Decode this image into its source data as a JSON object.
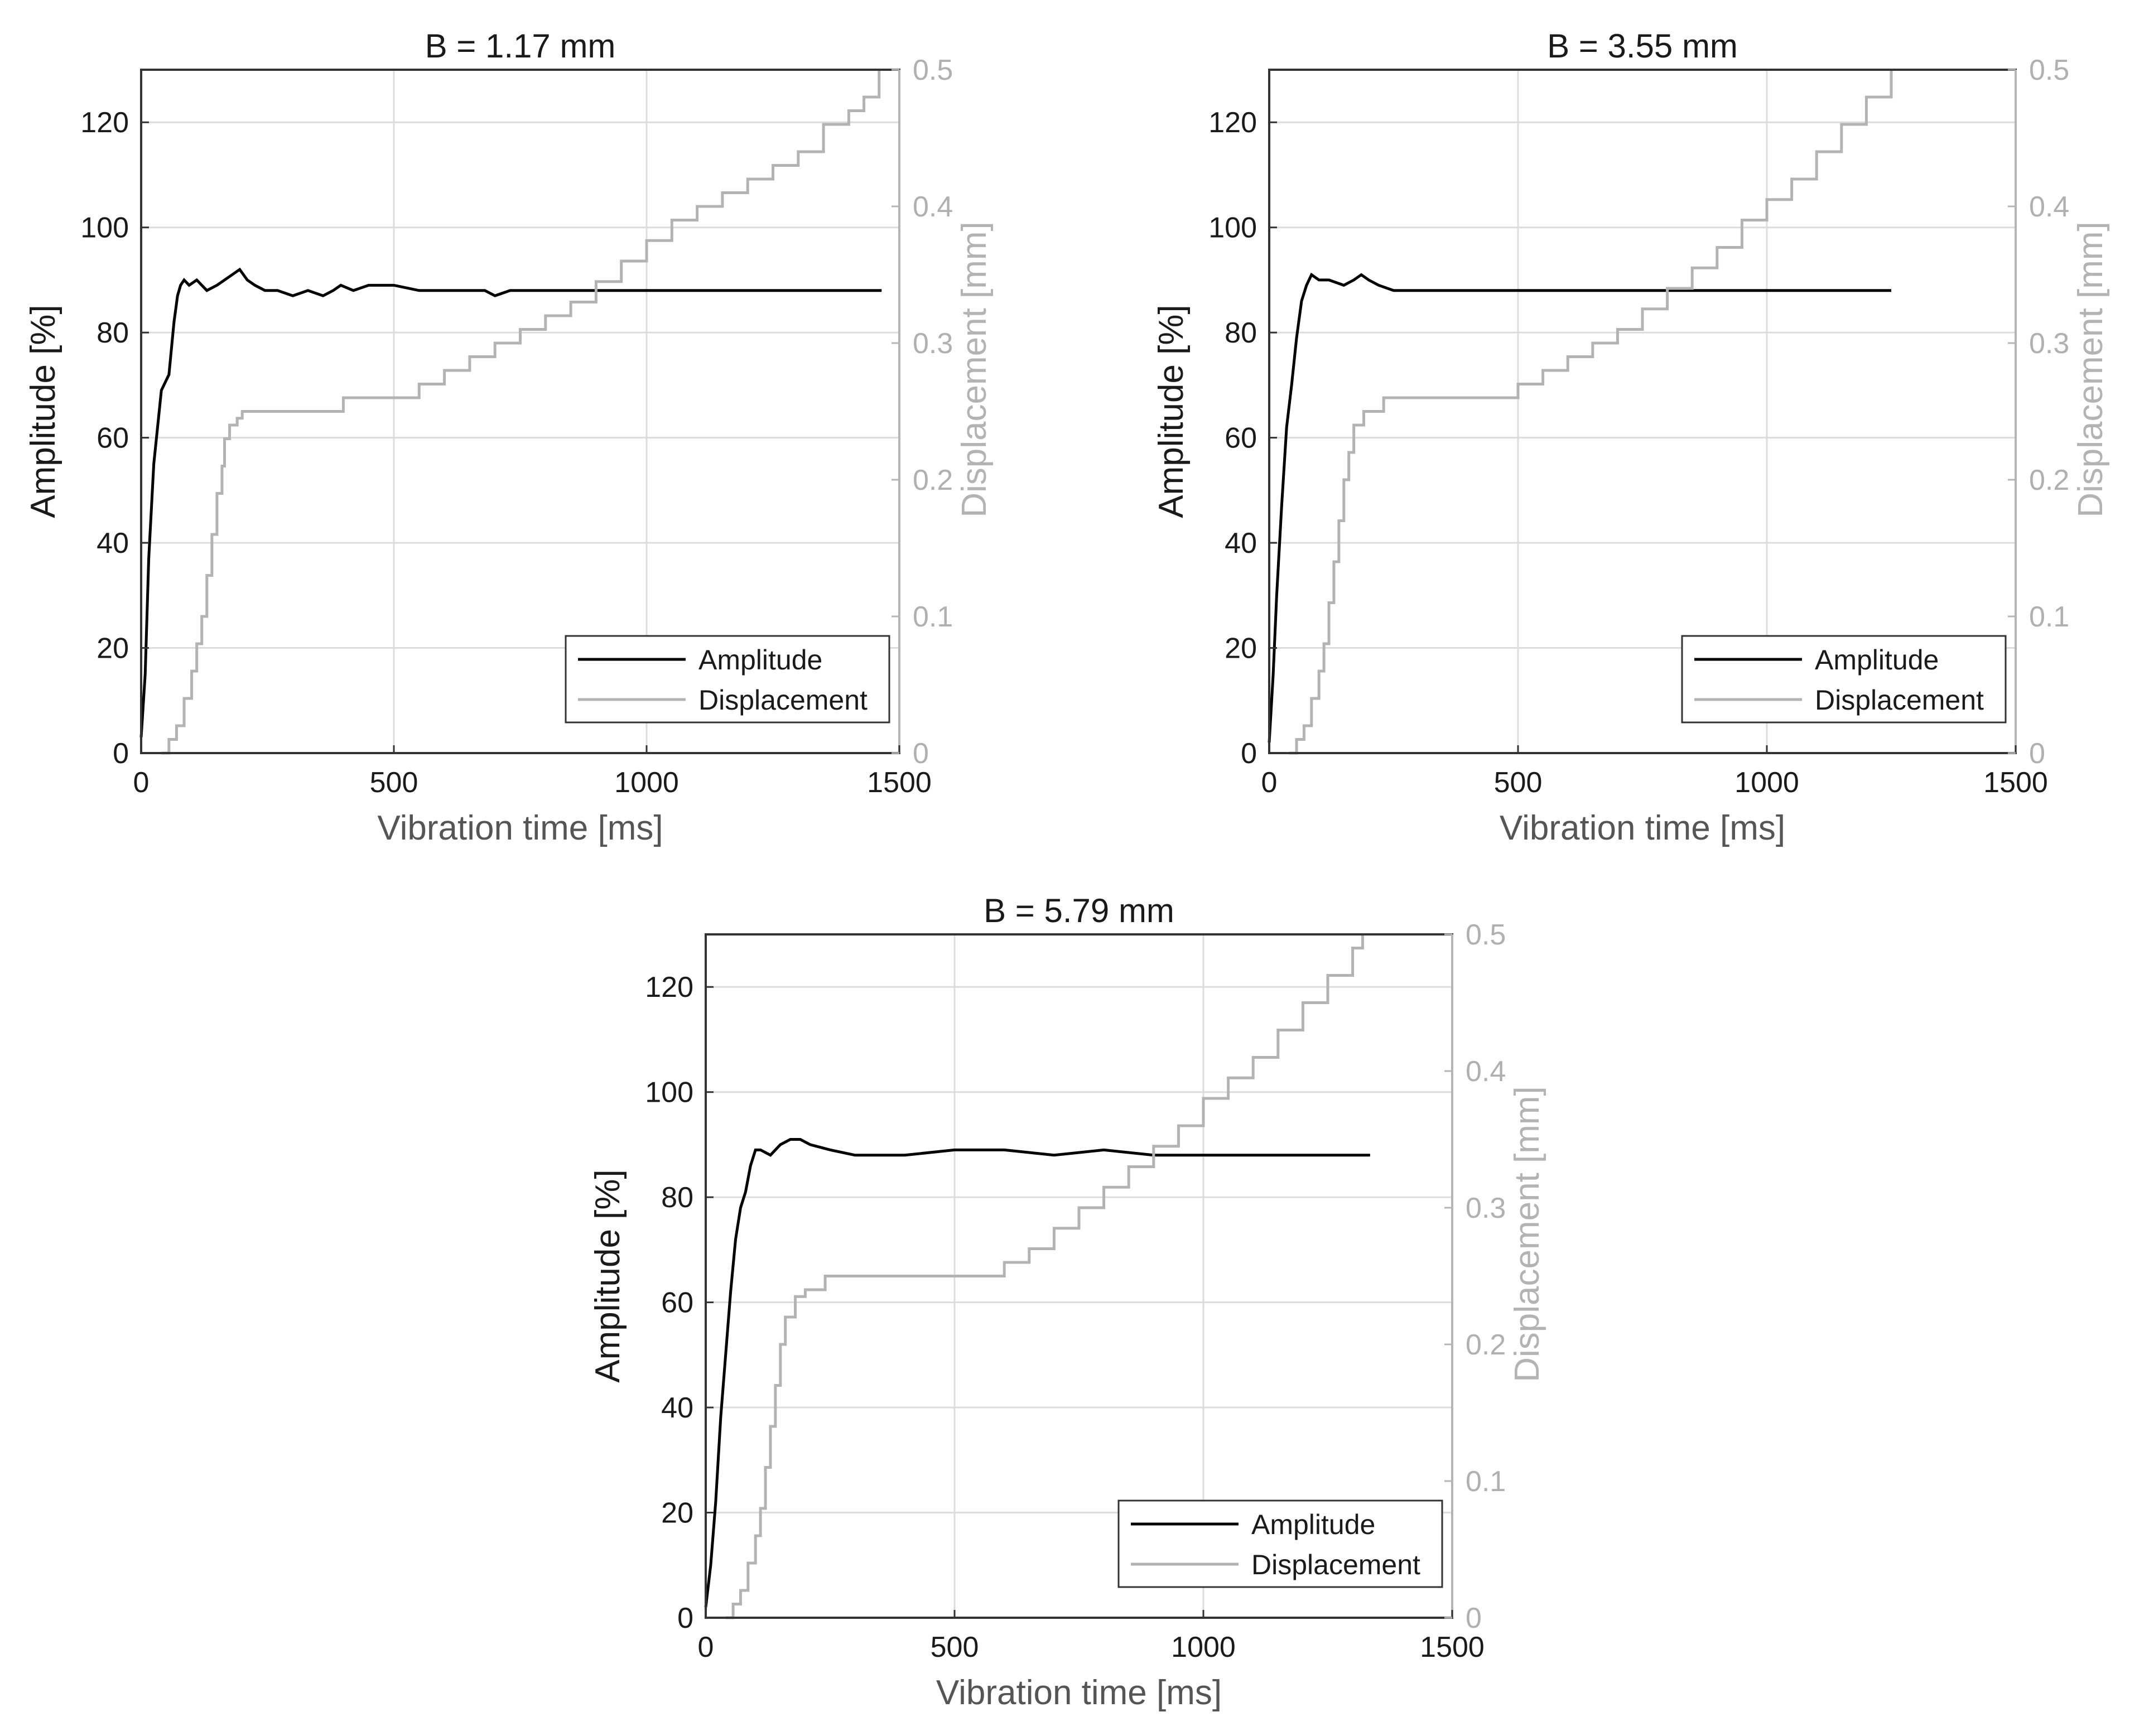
{
  "chart_data": [
    {
      "type": "line",
      "title": "B = 1.17 mm",
      "xlabel": "Vibration time [ms]",
      "ylabel": "Amplitude [%]",
      "y2label": "Displacement [mm]",
      "xlim": [
        0,
        1500
      ],
      "ylim": [
        0,
        130
      ],
      "y2lim": [
        0,
        0.5
      ],
      "xticks": [
        0,
        500,
        1000,
        1500
      ],
      "yticks": [
        0,
        20,
        40,
        60,
        80,
        100,
        120
      ],
      "y2ticks": [
        0,
        0.1,
        0.2,
        0.3,
        0.4,
        0.5
      ],
      "grid": true,
      "legend": {
        "position": "bottom-right",
        "entries": [
          "Amplitude",
          "Displacement"
        ]
      },
      "series": [
        {
          "name": "Amplitude",
          "color": "#000000",
          "axis": "left",
          "x": [
            0,
            8,
            15,
            25,
            40,
            55,
            65,
            72,
            78,
            85,
            95,
            110,
            130,
            150,
            165,
            180,
            195,
            210,
            225,
            245,
            270,
            300,
            330,
            360,
            380,
            395,
            420,
            450,
            500,
            550,
            600,
            640,
            680,
            700,
            730,
            780,
            850,
            900,
            950,
            1000,
            1100,
            1200,
            1300,
            1400,
            1465
          ],
          "y": [
            3,
            15,
            37,
            55,
            69,
            72,
            82,
            87,
            89,
            90,
            89,
            90,
            88,
            89,
            90,
            91,
            92,
            90,
            89,
            88,
            88,
            87,
            88,
            87,
            88,
            89,
            88,
            89,
            89,
            88,
            88,
            88,
            88,
            87,
            88,
            88,
            88,
            88,
            88,
            88,
            88,
            88,
            88,
            88,
            88
          ]
        },
        {
          "name": "Displacement",
          "color": "#b3b3b3",
          "axis": "right",
          "x": [
            40,
            55,
            70,
            85,
            100,
            110,
            120,
            130,
            140,
            150,
            160,
            165,
            175,
            190,
            200,
            400,
            500,
            550,
            600,
            650,
            700,
            750,
            800,
            850,
            900,
            950,
            1000,
            1050,
            1100,
            1150,
            1200,
            1250,
            1300,
            1350,
            1400,
            1430,
            1460
          ],
          "y": [
            0,
            0.01,
            0.02,
            0.04,
            0.06,
            0.08,
            0.1,
            0.13,
            0.16,
            0.19,
            0.21,
            0.23,
            0.24,
            0.245,
            0.25,
            0.26,
            0.26,
            0.27,
            0.28,
            0.29,
            0.3,
            0.31,
            0.32,
            0.33,
            0.345,
            0.36,
            0.375,
            0.39,
            0.4,
            0.41,
            0.42,
            0.43,
            0.44,
            0.46,
            0.47,
            0.48,
            0.5
          ]
        }
      ]
    },
    {
      "type": "line",
      "title": "B = 3.55 mm",
      "xlabel": "Vibration time [ms]",
      "ylabel": "Amplitude [%]",
      "y2label": "Displacement [mm]",
      "xlim": [
        0,
        1500
      ],
      "ylim": [
        0,
        130
      ],
      "y2lim": [
        0,
        0.5
      ],
      "xticks": [
        0,
        500,
        1000,
        1500
      ],
      "yticks": [
        0,
        20,
        40,
        60,
        80,
        100,
        120
      ],
      "y2ticks": [
        0,
        0.1,
        0.2,
        0.3,
        0.4,
        0.5
      ],
      "grid": true,
      "legend": {
        "position": "bottom-right",
        "entries": [
          "Amplitude",
          "Displacement"
        ]
      },
      "series": [
        {
          "name": "Amplitude",
          "color": "#000000",
          "axis": "left",
          "x": [
            0,
            8,
            15,
            25,
            35,
            45,
            55,
            65,
            75,
            85,
            100,
            120,
            150,
            170,
            185,
            200,
            220,
            250,
            300,
            400,
            500,
            600,
            700,
            800,
            900,
            920,
            1000,
            1100,
            1200,
            1250
          ],
          "y": [
            2,
            15,
            30,
            47,
            62,
            70,
            79,
            86,
            89,
            91,
            90,
            90,
            89,
            90,
            91,
            90,
            89,
            88,
            88,
            88,
            88,
            88,
            88,
            88,
            88,
            88,
            88,
            88,
            88,
            88
          ]
        },
        {
          "name": "Displacement",
          "color": "#b3b3b3",
          "axis": "right",
          "x": [
            40,
            55,
            70,
            85,
            100,
            110,
            120,
            130,
            140,
            150,
            160,
            170,
            190,
            200,
            230,
            480,
            500,
            550,
            600,
            650,
            700,
            750,
            800,
            850,
            900,
            950,
            1000,
            1050,
            1100,
            1150,
            1200,
            1250
          ],
          "y": [
            0,
            0.01,
            0.02,
            0.04,
            0.06,
            0.08,
            0.11,
            0.14,
            0.17,
            0.2,
            0.22,
            0.24,
            0.25,
            0.25,
            0.26,
            0.26,
            0.27,
            0.28,
            0.29,
            0.3,
            0.31,
            0.325,
            0.34,
            0.355,
            0.37,
            0.39,
            0.405,
            0.42,
            0.44,
            0.46,
            0.48,
            0.5
          ]
        }
      ]
    },
    {
      "type": "line",
      "title": "B = 5.79 mm",
      "xlabel": "Vibration time [ms]",
      "ylabel": "Amplitude [%]",
      "y2label": "Displacement [mm]",
      "xlim": [
        0,
        1500
      ],
      "ylim": [
        0,
        130
      ],
      "y2lim": [
        0,
        0.5
      ],
      "xticks": [
        0,
        500,
        1000,
        1500
      ],
      "yticks": [
        0,
        20,
        40,
        60,
        80,
        100,
        120
      ],
      "y2ticks": [
        0,
        0.1,
        0.2,
        0.3,
        0.4,
        0.5
      ],
      "grid": true,
      "legend": {
        "position": "bottom-right",
        "entries": [
          "Amplitude",
          "Displacement"
        ]
      },
      "series": [
        {
          "name": "Amplitude",
          "color": "#000000",
          "axis": "left",
          "x": [
            0,
            10,
            20,
            30,
            40,
            50,
            60,
            70,
            80,
            90,
            100,
            110,
            130,
            150,
            170,
            190,
            210,
            250,
            300,
            400,
            500,
            600,
            700,
            800,
            900,
            1000,
            1100,
            1200,
            1300,
            1335
          ],
          "y": [
            2,
            10,
            22,
            38,
            50,
            62,
            72,
            78,
            81,
            86,
            89,
            89,
            88,
            90,
            91,
            91,
            90,
            89,
            88,
            88,
            89,
            89,
            88,
            89,
            88,
            88,
            88,
            88,
            88,
            88
          ]
        },
        {
          "name": "Displacement",
          "color": "#b3b3b3",
          "axis": "right",
          "x": [
            40,
            55,
            70,
            85,
            100,
            110,
            120,
            130,
            140,
            150,
            160,
            180,
            200,
            240,
            590,
            600,
            650,
            700,
            750,
            800,
            850,
            900,
            950,
            1000,
            1050,
            1100,
            1150,
            1200,
            1250,
            1300,
            1320
          ],
          "y": [
            0,
            0.01,
            0.02,
            0.04,
            0.06,
            0.08,
            0.11,
            0.14,
            0.17,
            0.2,
            0.22,
            0.235,
            0.24,
            0.25,
            0.25,
            0.26,
            0.27,
            0.285,
            0.3,
            0.315,
            0.33,
            0.345,
            0.36,
            0.38,
            0.395,
            0.41,
            0.43,
            0.45,
            0.47,
            0.49,
            0.5
          ]
        }
      ]
    }
  ]
}
